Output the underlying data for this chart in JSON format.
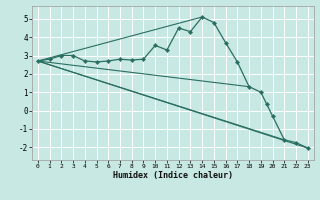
{
  "xlabel": "Humidex (Indice chaleur)",
  "bg_color": "#c8e8e4",
  "line_color": "#2a6e62",
  "grid_color": "#ffffff",
  "xlim": [
    -0.5,
    23.5
  ],
  "ylim": [
    -2.7,
    5.7
  ],
  "yticks": [
    -2,
    -1,
    0,
    1,
    2,
    3,
    4,
    5
  ],
  "xticks": [
    0,
    1,
    2,
    3,
    4,
    5,
    6,
    7,
    8,
    9,
    10,
    11,
    12,
    13,
    14,
    15,
    16,
    17,
    18,
    19,
    20,
    21,
    22,
    23
  ],
  "main_x": [
    0,
    1,
    2,
    3,
    4,
    5,
    6,
    7,
    8,
    9,
    10,
    11,
    12,
    13,
    14,
    15,
    16,
    17,
    18,
    19,
    19.5,
    20,
    21,
    22,
    23
  ],
  "main_y": [
    2.7,
    2.8,
    3.0,
    3.0,
    2.7,
    2.65,
    2.7,
    2.8,
    2.75,
    2.8,
    3.55,
    3.3,
    4.5,
    4.3,
    5.1,
    4.8,
    3.7,
    2.65,
    1.3,
    1.0,
    0.35,
    -0.3,
    -1.6,
    -1.75,
    -2.05
  ],
  "line1_x": [
    0,
    23
  ],
  "line1_y": [
    2.7,
    -2.05
  ],
  "line2_x": [
    0,
    21
  ],
  "line2_y": [
    2.7,
    -1.6
  ],
  "line3_x": [
    0,
    18
  ],
  "line3_y": [
    2.7,
    1.3
  ],
  "line4_x": [
    0,
    14
  ],
  "line4_y": [
    2.7,
    5.1
  ]
}
